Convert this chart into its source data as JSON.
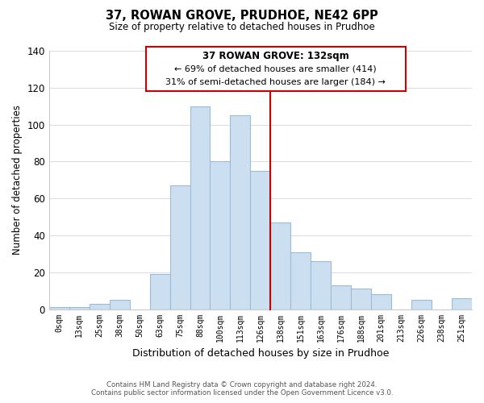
{
  "title": "37, ROWAN GROVE, PRUDHOE, NE42 6PP",
  "subtitle": "Size of property relative to detached houses in Prudhoe",
  "xlabel": "Distribution of detached houses by size in Prudhoe",
  "ylabel": "Number of detached properties",
  "bar_labels": [
    "0sqm",
    "13sqm",
    "25sqm",
    "38sqm",
    "50sqm",
    "63sqm",
    "75sqm",
    "88sqm",
    "100sqm",
    "113sqm",
    "126sqm",
    "138sqm",
    "151sqm",
    "163sqm",
    "176sqm",
    "188sqm",
    "201sqm",
    "213sqm",
    "226sqm",
    "238sqm",
    "251sqm"
  ],
  "bar_values": [
    1,
    1,
    3,
    5,
    0,
    19,
    67,
    110,
    80,
    105,
    75,
    47,
    31,
    26,
    13,
    11,
    8,
    0,
    5,
    0,
    6
  ],
  "bar_color": "#ccdff0",
  "bar_edge_color": "#9bbbd8",
  "highlight_line_color": "#cc0000",
  "ylim": [
    0,
    140
  ],
  "yticks": [
    0,
    20,
    40,
    60,
    80,
    100,
    120,
    140
  ],
  "annotation_title": "37 ROWAN GROVE: 132sqm",
  "annotation_line1": "← 69% of detached houses are smaller (414)",
  "annotation_line2": "31% of semi-detached houses are larger (184) →",
  "annotation_box_color": "#ffffff",
  "annotation_box_edge": "#cc0000",
  "footer_line1": "Contains HM Land Registry data © Crown copyright and database right 2024.",
  "footer_line2": "Contains public sector information licensed under the Open Government Licence v3.0.",
  "background_color": "#ffffff",
  "grid_color": "#dddddd"
}
